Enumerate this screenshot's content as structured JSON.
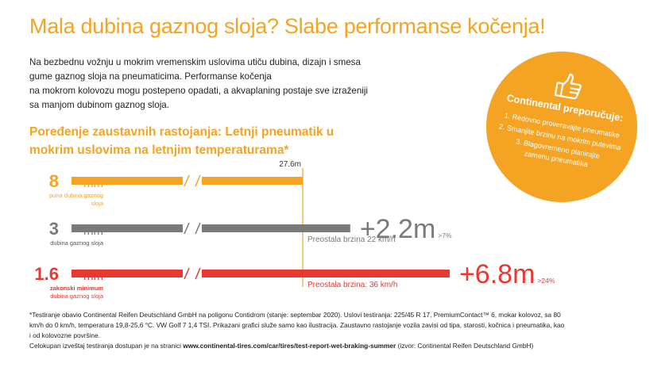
{
  "title": "Mala dubina gaznog sloja? Slabe performanse kočenja!",
  "intro": [
    "Na bezbednu vožnju u mokrim vremenskim uslovima utiču dubina, dizajn i smesa",
    "gume gaznog sloja na pneumaticima. Performanse kočenja",
    "na mokrom kolovozu mogu postepeno opadati, a akvaplaning postaje sve izraženiji",
    "sa manjom dubinom gaznog sloja."
  ],
  "subtitle": [
    "Poređenje zaustavnih rastojanja: Letnji pneumatik u",
    "mokrim uslovima na letnjim temperaturama*"
  ],
  "recommendation": {
    "title": "Continental preporučuje:",
    "items": [
      "1. Redovno proveravajte pneumatike",
      "2. Smanjite brzinu na mokrim putevima",
      "3. Blagovremeno planirajte",
      "zamenu pneumatika"
    ],
    "icon": "thumbs-up-icon"
  },
  "chart_data": {
    "type": "bar",
    "title": "Poređenje zaustavnih rastojanja: Letnji pneumatik u mokrim uslovima na letnjim temperaturama*",
    "reference_label": "27.6m",
    "rows": [
      {
        "depth": "8",
        "unit": "mm",
        "label": [
          "puna dubina gaznog",
          "sloja"
        ],
        "value": 27.6,
        "extra_label": "",
        "percent_label": "",
        "speed_label": "",
        "color": "#f4a323"
      },
      {
        "depth": "3",
        "unit": "mm",
        "label": [
          "dubina gaznog sloja"
        ],
        "value": 29.8,
        "extra_label": "+2.2m",
        "percent_label": ">7%",
        "speed_label": "Preostala brzina 22 km/h",
        "color": "#7a7a7a"
      },
      {
        "depth": "1.6",
        "unit": "mm",
        "label": [
          "zakonski minimum",
          "dubina gaznog sloja"
        ],
        "value": 34.4,
        "extra_label": "+6.8m",
        "percent_label": ">24%",
        "speed_label": "Preostala brzina: 36 km/h",
        "color": "#e8382f"
      }
    ]
  },
  "footnote": {
    "lines": [
      "*Testiranje obavio Continental Reifen Deutschland GmbH na poligonu Contidrom (stanje: septembar 2020). Uslovi testiranja: 225/45 R 17, PremiumContact™ 6, mokar kolovoz, sa 80",
      "km/h do 0 km/h, temperatura 19,8-25,6 °C. VW Golf 7 1,4 TSI. Prikazani grafici služe samo kao ilustracija. Zaustavno rastojanje vozila zavisi od tipa, starosti, kočnica i pneumatika, kao",
      "i od kolovozne površine."
    ],
    "link_prefix": "Celokupan izveštaj testiranja dostupan je na stranici ",
    "link": "www.continental-tires.com/car/tires/test-report-wet-braking-summer",
    "link_suffix": " (izvor: Continental Reifen Deutschland GmbH)"
  }
}
